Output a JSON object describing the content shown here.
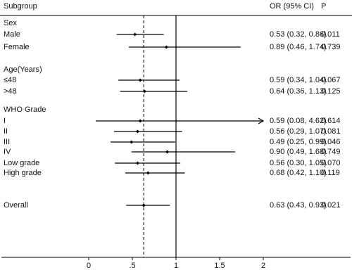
{
  "chart_data": {
    "type": "forest",
    "headers": {
      "label": "Subgroup",
      "ci": "OR (95% CI)",
      "p": "P"
    },
    "xlim": [
      -1,
      3
    ],
    "xticks": [
      0,
      {
        "value": 0.5,
        "label": ".5"
      },
      1,
      1.5,
      2
    ],
    "null_line": 1,
    "rows": [
      {
        "label": "Sex"
      },
      {
        "label": "Male",
        "or": 0.53,
        "lo": 0.32,
        "hi": 0.86,
        "ci_label": "0.53 (0.32, 0.86)",
        "p": "0.011"
      },
      {
        "label": "Female",
        "or": 0.89,
        "lo": 0.46,
        "hi": 1.74,
        "ci_label": "0.89 (0.46, 1.74)",
        "p": "0.739"
      },
      {
        "label": "Age(Years)"
      },
      {
        "label": "≤48",
        "or": 0.59,
        "lo": 0.34,
        "hi": 1.04,
        "ci_label": "0.59 (0.34, 1.04)",
        "p": "0.067"
      },
      {
        "label": ">48",
        "or": 0.64,
        "lo": 0.36,
        "hi": 1.13,
        "ci_label": "0.64 (0.36, 1.13)",
        "p": "0.125"
      },
      {
        "label": "WHO Grade"
      },
      {
        "label": "I",
        "or": 0.59,
        "lo": 0.08,
        "hi": 4.62,
        "ci_label": "0.59 (0.08, 4.62)",
        "p": "0.614"
      },
      {
        "label": "II",
        "or": 0.56,
        "lo": 0.29,
        "hi": 1.07,
        "ci_label": "0.56 (0.29, 1.07)",
        "p": "0.081"
      },
      {
        "label": "III",
        "or": 0.49,
        "lo": 0.25,
        "hi": 0.99,
        "ci_label": "0.49 (0.25, 0.99)",
        "p": "0.046"
      },
      {
        "label": "IV",
        "or": 0.9,
        "lo": 0.49,
        "hi": 1.68,
        "ci_label": "0.90 (0.49, 1.68)",
        "p": "0.749"
      },
      {
        "label": "Low grade",
        "or": 0.56,
        "lo": 0.3,
        "hi": 1.05,
        "ci_label": "0.56 (0.30, 1.05)",
        "p": "0.070"
      },
      {
        "label": "High grade",
        "or": 0.68,
        "lo": 0.42,
        "hi": 1.1,
        "ci_label": "0.68 (0.42, 1.10)",
        "p": "0.119"
      },
      {
        "label": "Overall",
        "or": 0.63,
        "lo": 0.43,
        "hi": 0.93,
        "ci_label": "0.63 (0.43, 0.93)",
        "p": "0.021",
        "overall": true
      }
    ]
  }
}
